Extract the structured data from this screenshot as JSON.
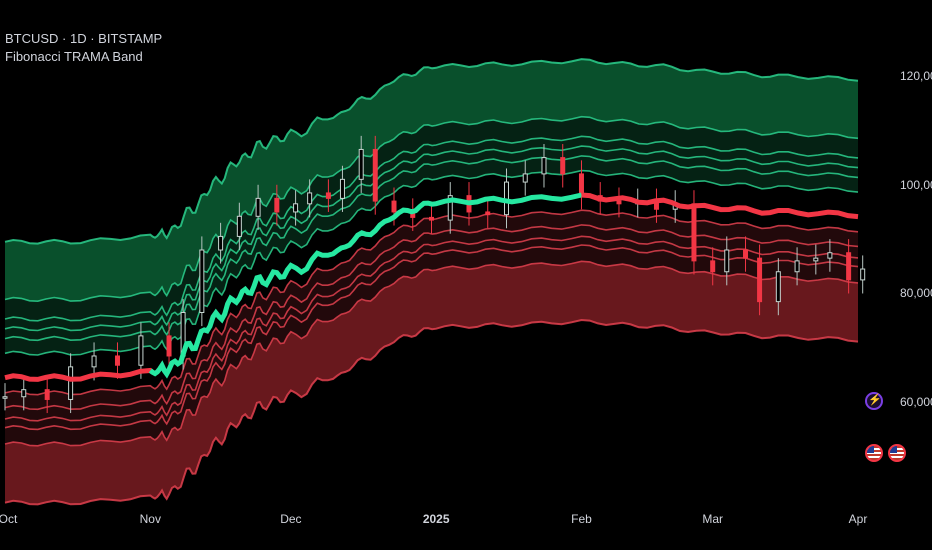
{
  "header": {
    "symbol_line": "BTCUSD · 1D · BITSTAMP",
    "indicator_name": "Fibonacci TRAMA Band"
  },
  "colors": {
    "background": "#000000",
    "bull": "#26e8a1",
    "bear": "#f23645",
    "bull_band": "#0b5e34",
    "bear_band": "#7a1c22",
    "text": "#d1d4dc"
  },
  "icons": [
    "lightning-badge-icon",
    "us-flag-icon",
    "us-flag-icon"
  ],
  "chart_data": {
    "type": "line",
    "title": "",
    "xlabel": "",
    "ylabel": "",
    "x_ticks": [
      "Oct",
      "Nov",
      "Dec",
      "2025",
      "Feb",
      "Mar",
      "Apr"
    ],
    "x_tick_bold": [
      "2025"
    ],
    "x_dates": [
      "2024-10-01",
      "2024-11-01",
      "2024-12-01",
      "2025-01-01",
      "2025-02-01",
      "2025-03-01",
      "2025-04-01"
    ],
    "y_ticks": [
      "120,000",
      "100,000",
      "80,000",
      "60,000"
    ],
    "y_tick_values": [
      120000,
      100000,
      80000,
      60000
    ],
    "ylim": [
      42000,
      134000
    ],
    "grid": false,
    "series": [
      {
        "role": "trama_basis",
        "x": [
          "2024-10-01",
          "2024-10-15",
          "2024-11-01",
          "2024-11-05",
          "2024-11-10",
          "2024-11-15",
          "2024-11-20",
          "2024-11-25",
          "2024-12-01",
          "2024-12-10",
          "2024-12-17",
          "2024-12-25",
          "2025-01-01",
          "2025-01-15",
          "2025-02-01",
          "2025-02-15",
          "2025-03-01",
          "2025-03-15",
          "2025-04-01"
        ],
        "values": [
          64500,
          64500,
          65500,
          66200,
          70500,
          75500,
          79500,
          82500,
          84200,
          87500,
          91000,
          95000,
          96800,
          97200,
          97800,
          97000,
          95800,
          95000,
          94500
        ],
        "bull_until": "2025-02-01"
      }
    ],
    "band_offsets_upper": [
      4500,
      7200,
      9000,
      10800,
      14400,
      25000
    ],
    "band_offsets_lower": [
      2800,
      5500,
      7600,
      9200,
      12200,
      23000
    ],
    "candles": [
      {
        "x": "2024-10-01",
        "c": 61000
      },
      {
        "x": "2024-10-05",
        "c": 62300
      },
      {
        "x": "2024-10-10",
        "c": 60500
      },
      {
        "x": "2024-10-15",
        "c": 66500
      },
      {
        "x": "2024-10-20",
        "c": 68500
      },
      {
        "x": "2024-10-25",
        "c": 66800
      },
      {
        "x": "2024-10-30",
        "c": 72200
      },
      {
        "x": "2024-11-05",
        "c": 68500
      },
      {
        "x": "2024-11-08",
        "c": 76500
      },
      {
        "x": "2024-11-12",
        "c": 88000
      },
      {
        "x": "2024-11-16",
        "c": 90500
      },
      {
        "x": "2024-11-20",
        "c": 94200
      },
      {
        "x": "2024-11-24",
        "c": 97500
      },
      {
        "x": "2024-11-28",
        "c": 95000
      },
      {
        "x": "2024-12-02",
        "c": 96500
      },
      {
        "x": "2024-12-05",
        "c": 98500
      },
      {
        "x": "2024-12-09",
        "c": 97500
      },
      {
        "x": "2024-12-12",
        "c": 101000
      },
      {
        "x": "2024-12-16",
        "c": 106500
      },
      {
        "x": "2024-12-19",
        "c": 97000
      },
      {
        "x": "2024-12-23",
        "c": 95000
      },
      {
        "x": "2024-12-27",
        "c": 94000
      },
      {
        "x": "2024-12-31",
        "c": 93500
      },
      {
        "x": "2025-01-04",
        "c": 98000
      },
      {
        "x": "2025-01-08",
        "c": 95000
      },
      {
        "x": "2025-01-12",
        "c": 94500
      },
      {
        "x": "2025-01-16",
        "c": 100500
      },
      {
        "x": "2025-01-20",
        "c": 102000
      },
      {
        "x": "2025-01-24",
        "c": 105000
      },
      {
        "x": "2025-01-28",
        "c": 102000
      },
      {
        "x": "2025-02-01",
        "c": 98000
      },
      {
        "x": "2025-02-05",
        "c": 97000
      },
      {
        "x": "2025-02-09",
        "c": 96500
      },
      {
        "x": "2025-02-13",
        "c": 96800
      },
      {
        "x": "2025-02-17",
        "c": 95500
      },
      {
        "x": "2025-02-21",
        "c": 96500
      },
      {
        "x": "2025-02-25",
        "c": 86000
      },
      {
        "x": "2025-03-01",
        "c": 84000
      },
      {
        "x": "2025-03-04",
        "c": 88000
      },
      {
        "x": "2025-03-08",
        "c": 86500
      },
      {
        "x": "2025-03-11",
        "c": 78500
      },
      {
        "x": "2025-03-15",
        "c": 84000
      },
      {
        "x": "2025-03-19",
        "c": 86000
      },
      {
        "x": "2025-03-23",
        "c": 86500
      },
      {
        "x": "2025-03-26",
        "c": 87500
      },
      {
        "x": "2025-03-30",
        "c": 82500
      },
      {
        "x": "2025-04-02",
        "c": 84500
      }
    ]
  }
}
